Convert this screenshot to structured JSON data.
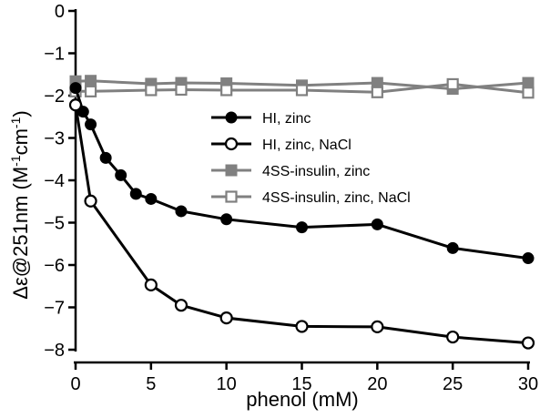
{
  "chart_data": {
    "type": "line",
    "xlabel": "phenol (mM)",
    "ylabel_main": "Δε@251nm (M",
    "ylabel_sup1": "-1",
    "ylabel_mid": "cm",
    "ylabel_sup2": "-1",
    "ylabel_end": ")",
    "xlim": [
      0,
      30
    ],
    "ylim": [
      -8,
      0
    ],
    "xticks": [
      0,
      5,
      10,
      15,
      20,
      25,
      30
    ],
    "yticks": [
      0,
      -1,
      -2,
      -3,
      -4,
      -5,
      -6,
      -7,
      -8
    ],
    "grid": false,
    "legend_position": "center",
    "series": [
      {
        "name": "HI, zinc",
        "color": "#000000",
        "marker": "filled-circle",
        "x": [
          0,
          0.5,
          1,
          2,
          3,
          4,
          5,
          7,
          10,
          15,
          20,
          25,
          30
        ],
        "y": [
          -1.82,
          -2.38,
          -2.68,
          -3.47,
          -3.88,
          -4.32,
          -4.44,
          -4.73,
          -4.92,
          -5.11,
          -5.04,
          -5.6,
          -5.84
        ]
      },
      {
        "name": "HI, zinc, NaCl",
        "color": "#000000",
        "marker": "open-circle",
        "x": [
          0,
          1,
          5,
          7,
          10,
          15,
          20,
          25,
          30
        ],
        "y": [
          -2.22,
          -4.49,
          -6.47,
          -6.95,
          -7.25,
          -7.45,
          -7.46,
          -7.7,
          -7.84
        ]
      },
      {
        "name": "4SS-insulin, zinc",
        "color": "#808080",
        "marker": "filled-square",
        "x": [
          0,
          1,
          5,
          7,
          10,
          15,
          20,
          25,
          30
        ],
        "y": [
          -1.66,
          -1.65,
          -1.72,
          -1.7,
          -1.71,
          -1.76,
          -1.7,
          -1.84,
          -1.7
        ]
      },
      {
        "name": "4SS-insulin, zinc, NaCl",
        "color": "#808080",
        "marker": "open-square",
        "x": [
          0,
          1,
          5,
          7,
          10,
          15,
          20,
          25,
          30
        ],
        "y": [
          -1.9,
          -1.9,
          -1.87,
          -1.86,
          -1.87,
          -1.87,
          -1.92,
          -1.73,
          -1.93
        ]
      }
    ]
  }
}
